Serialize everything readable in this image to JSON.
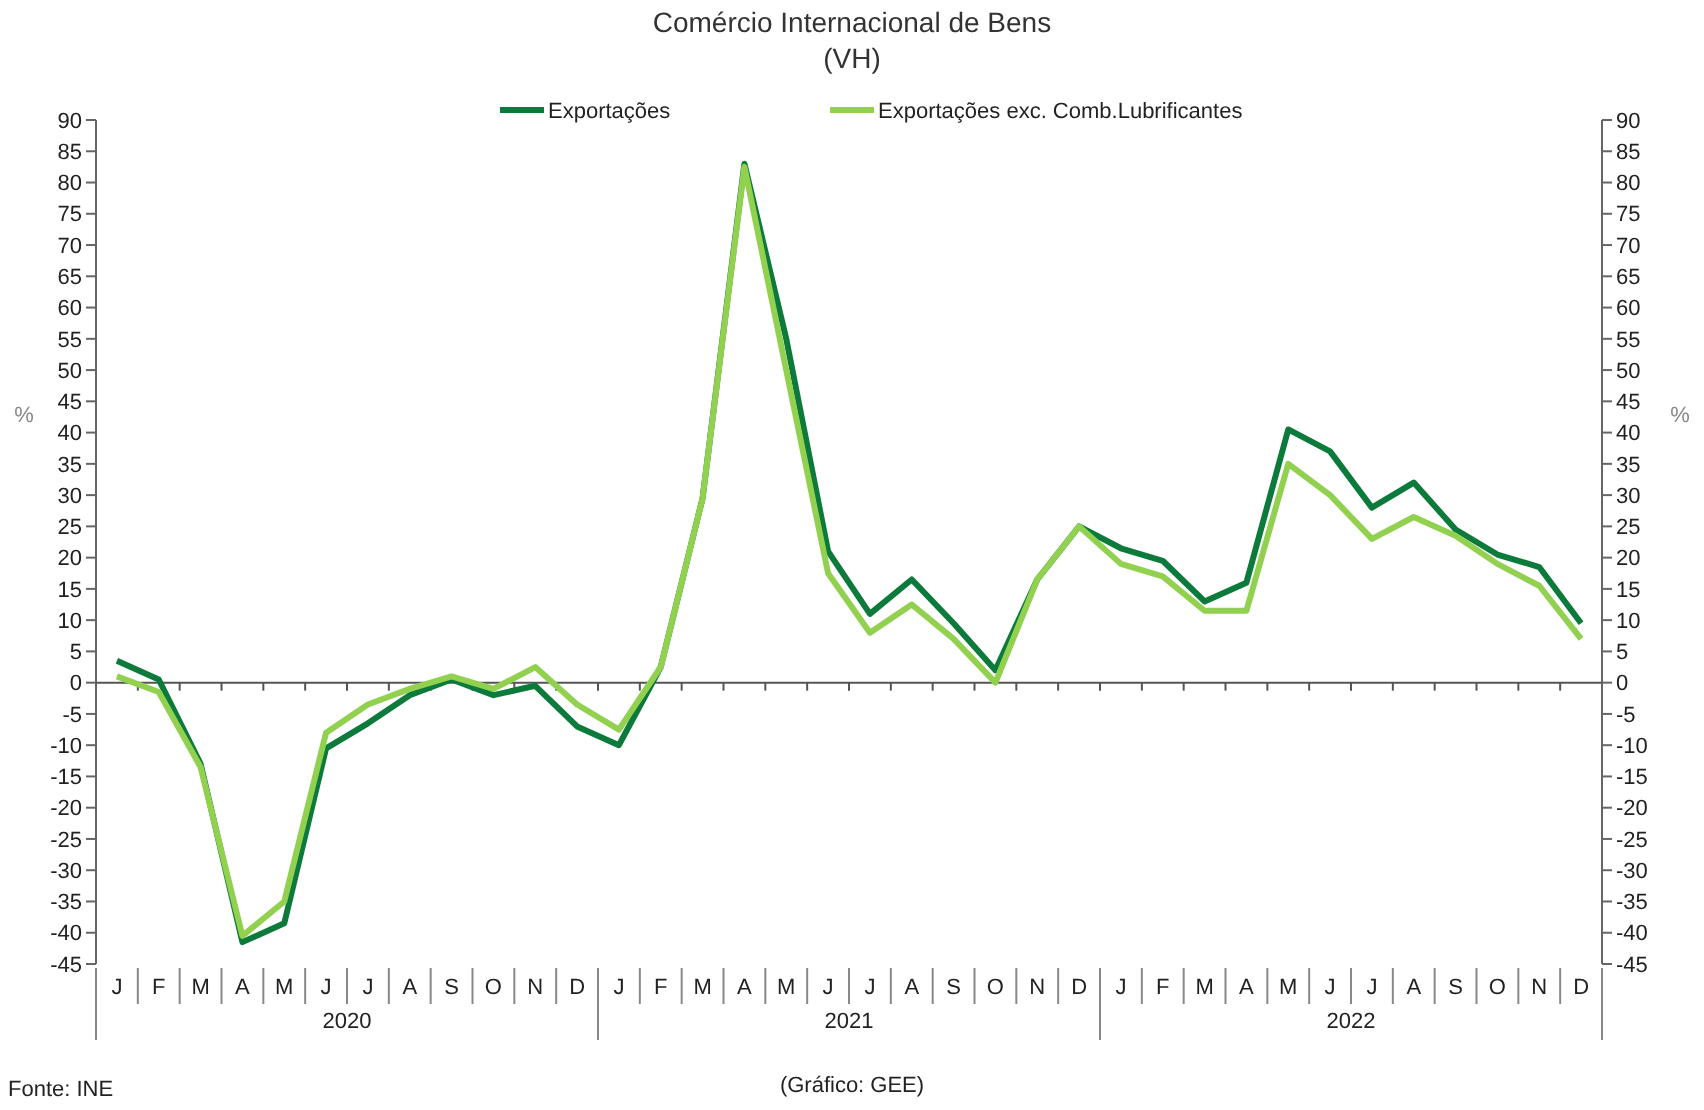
{
  "chart_data": {
    "type": "line",
    "title": "Comércio Internacional de Bens",
    "subtitle": "(VH)",
    "ylabel": "%",
    "y2label": "%",
    "categories": [
      "J",
      "F",
      "M",
      "A",
      "M",
      "J",
      "J",
      "A",
      "S",
      "O",
      "N",
      "D",
      "J",
      "F",
      "M",
      "A",
      "M",
      "J",
      "J",
      "A",
      "S",
      "O",
      "N",
      "D",
      "J",
      "F",
      "M",
      "A",
      "M",
      "J",
      "J",
      "A",
      "S",
      "O",
      "N",
      "D"
    ],
    "series": [
      {
        "name": "Exportações",
        "color": "#0b7a3a",
        "values": [
          3.5,
          0.5,
          -13,
          -41.5,
          -38.5,
          -10.5,
          -6.5,
          -2,
          0.5,
          -2,
          -0.5,
          -7,
          -10,
          2.5,
          29.5,
          83,
          55,
          21,
          11,
          16.5,
          9.5,
          2,
          16.5,
          25,
          21.5,
          19.5,
          13,
          16,
          40.5,
          37,
          28,
          32,
          24.5,
          20.5,
          18.5,
          9.5
        ]
      },
      {
        "name": "Exportações exc. Comb.Lubrificantes",
        "color": "#92d050",
        "values": [
          1,
          -1.5,
          -13.5,
          -40.5,
          -35,
          -8,
          -3.5,
          -1,
          1,
          -1,
          2.5,
          -3.5,
          -7.5,
          2.5,
          29.5,
          82.5,
          50,
          17.5,
          8,
          12.5,
          7,
          0,
          16.5,
          25,
          19,
          17,
          11.5,
          11.5,
          35,
          30,
          23,
          26.5,
          23.5,
          19,
          15.5,
          7
        ]
      }
    ],
    "ylim": [
      -45,
      90
    ],
    "yticks": [
      -45,
      -40,
      -35,
      -30,
      -25,
      -20,
      -15,
      -10,
      -5,
      0,
      5,
      10,
      15,
      20,
      25,
      30,
      35,
      40,
      45,
      50,
      55,
      60,
      65,
      70,
      75,
      80,
      85,
      90
    ],
    "y2lim": [
      -45,
      90
    ],
    "y2ticks": [
      -45,
      -40,
      -35,
      -30,
      -25,
      -20,
      -15,
      -10,
      -5,
      0,
      5,
      10,
      15,
      20,
      25,
      30,
      35,
      40,
      45,
      50,
      55,
      60,
      65,
      70,
      75,
      80,
      85,
      90
    ],
    "ref_lines": [
      {
        "axis": "y",
        "value": 0
      }
    ],
    "legend": "top",
    "line_style": "solid",
    "marker": "none",
    "annotations": [
      "2020",
      "2021",
      "2022",
      "Fonte: INE",
      "(Gráfico: GEE)"
    ]
  }
}
